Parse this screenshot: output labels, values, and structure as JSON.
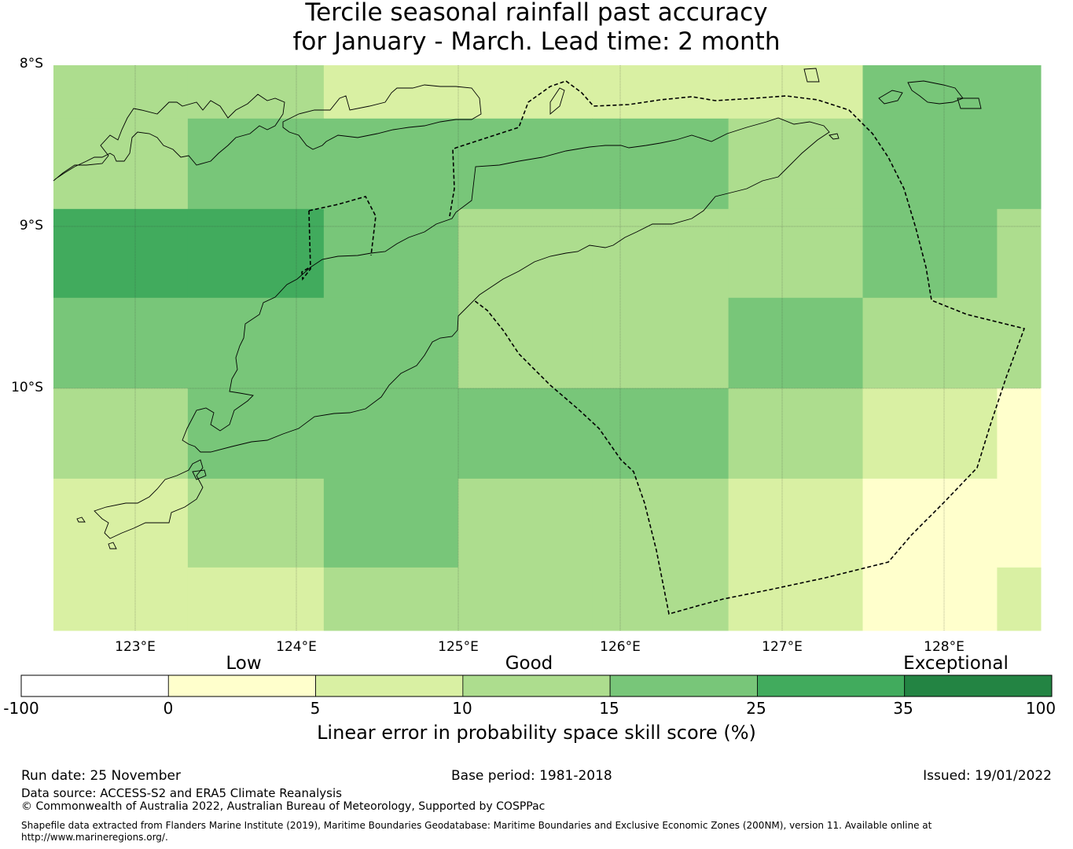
{
  "title": {
    "line1": "Tercile seasonal rainfall past accuracy",
    "line2": "for January - March. Lead time: 2 month"
  },
  "map": {
    "lat_labels": [
      "8°S",
      "9°S",
      "10°S"
    ],
    "lon_labels": [
      "123°E",
      "124°E",
      "125°E",
      "126°E",
      "127°E",
      "128°E"
    ],
    "lat_range": [
      -11.5,
      -8.0
    ],
    "lon_range": [
      122.5,
      128.6
    ],
    "grid_lon_edges": [
      122.5,
      123.33,
      124.17,
      125.0,
      125.83,
      126.67,
      127.5,
      128.33,
      128.6
    ],
    "grid_lat_edges": [
      -8.0,
      -8.33,
      -8.89,
      -9.44,
      -10.0,
      -10.56,
      -11.11,
      -11.5
    ],
    "cell_skill_class": [
      [
        "10-15",
        "10-15",
        "5-10",
        "5-10",
        "5-10",
        "5-10",
        "15-25",
        "15-25"
      ],
      [
        "10-15",
        "15-25",
        "15-25",
        "15-25",
        "15-25",
        "10-15",
        "15-25",
        "15-25"
      ],
      [
        "25-35",
        "25-35",
        "15-25",
        "10-15",
        "10-15",
        "10-15",
        "15-25",
        "10-15"
      ],
      [
        "15-25",
        "15-25",
        "15-25",
        "10-15",
        "10-15",
        "15-25",
        "10-15",
        "10-15"
      ],
      [
        "10-15",
        "15-25",
        "15-25",
        "15-25",
        "15-25",
        "10-15",
        "5-10",
        "0-5"
      ],
      [
        "5-10",
        "10-15",
        "15-25",
        "10-15",
        "10-15",
        "5-10",
        "0-5",
        "0-5"
      ],
      [
        "5-10",
        "5-10",
        "10-15",
        "10-15",
        "10-15",
        "5-10",
        "0-5",
        "5-10"
      ]
    ]
  },
  "legend": {
    "category_labels": [
      "Low",
      "Good",
      "Exceptional"
    ],
    "ticks": [
      "-100",
      "0",
      "5",
      "10",
      "15",
      "25",
      "35",
      "100"
    ],
    "colors": [
      "#ffffff",
      "#ffffcc",
      "#d9f0a3",
      "#addd8e",
      "#78c679",
      "#41ab5d",
      "#238443"
    ],
    "title": "Linear error in probability space skill score (%)"
  },
  "footer": {
    "run_date": "Run date: 25 November",
    "base_period": "Base period: 1981-2018",
    "issued": "Issued: 19/01/2022",
    "data_source": "Data source: ACCESS-S2 and ERA5 Climate Reanalysis",
    "copyright": "© Commonwealth of Australia 2022, Australian Bureau of Meteorology, Supported by COSPPac",
    "shapefile_line1": "Shapefile data extracted from Flanders Marine Institute (2019), Maritime Boundaries Geodatabase: Maritime Boundaries and Exclusive Economic Zones (200NM), version 11. Available online at",
    "shapefile_line2": "http://www.marineregions.org/."
  }
}
